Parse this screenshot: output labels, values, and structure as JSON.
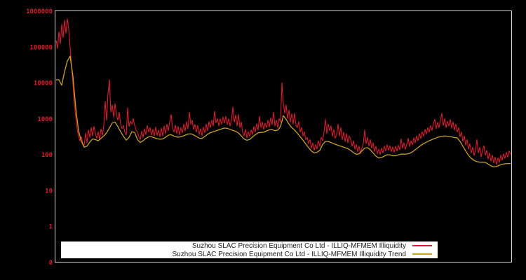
{
  "window": {
    "background": "#000000"
  },
  "plot": {
    "border_color": "#d9d9d9"
  },
  "y_axis": {
    "tick_color": "#dc1c2e",
    "ticks": [
      {
        "value": 1000000,
        "label": "1000000"
      },
      {
        "value": 100000,
        "label": "100000"
      },
      {
        "value": 10000,
        "label": "10000"
      },
      {
        "value": 1000,
        "label": "1000"
      },
      {
        "value": 100,
        "label": "100"
      },
      {
        "value": 10,
        "label": "10"
      },
      {
        "value": 1,
        "label": "1"
      },
      {
        "value": 0.1,
        "label": "0"
      }
    ]
  },
  "legend": {
    "background": "#ffffff",
    "text_color": "#1a1a1a"
  },
  "chart_data": {
    "type": "line",
    "title": "",
    "xlabel": "",
    "ylabel": "",
    "y_scale": "log",
    "ylim": [
      0.1,
      1000000
    ],
    "grid": false,
    "x_axis_labels": "none",
    "legend_position": "bottom-center",
    "series": [
      {
        "name": "Suzhou SLAC Precision Equipment Co Ltd - ILLIQ-MFMEM Illiquidity",
        "color": "#dc1c30",
        "width": 1.1,
        "data_name": "illiquidity-series-line",
        "x0": 80,
        "dx": 2,
        "values": [
          150000,
          90000,
          260000,
          120000,
          420000,
          180000,
          550000,
          240000,
          600000,
          320000,
          90000,
          30000,
          9000,
          2600,
          1100,
          520,
          330,
          240,
          310,
          200,
          180,
          390,
          210,
          480,
          300,
          560,
          330,
          600,
          390,
          280,
          430,
          260,
          520,
          340,
          650,
          3000,
          900,
          5200,
          12000,
          1500,
          2400,
          1100,
          2600,
          1300,
          900,
          1500,
          700,
          520,
          640,
          420,
          350,
          2000,
          600,
          850,
          700,
          1000,
          650,
          480,
          420,
          310,
          260,
          440,
          300,
          520,
          360,
          640,
          420,
          560,
          350,
          500,
          330,
          580,
          340,
          480,
          310,
          540,
          330,
          620,
          380,
          700,
          460,
          800,
          1300,
          560,
          420,
          660,
          380,
          600,
          350,
          560,
          400,
          700,
          450,
          820,
          520,
          1500,
          700,
          900,
          500,
          680,
          420,
          640,
          360,
          520,
          330,
          580,
          400,
          700,
          460,
          820,
          560,
          900,
          620,
          1600,
          760,
          1000,
          620,
          980,
          700,
          1100,
          760,
          1150,
          680,
          1000,
          620,
          900,
          2100,
          800,
          1250,
          620,
          1300,
          560,
          800,
          420,
          330,
          500,
          290,
          430,
          320,
          480,
          360,
          600,
          430,
          720,
          480,
          1150,
          560,
          800,
          500,
          740,
          560,
          900,
          580,
          1050,
          680,
          1500,
          620,
          900,
          560,
          1000,
          800,
          10000,
          2600,
          1400,
          2400,
          1000,
          1700,
          800,
          1350,
          700,
          1400,
          640,
          560,
          820,
          420,
          560,
          330,
          430,
          260,
          300,
          200,
          260,
          150,
          210,
          130,
          190,
          140,
          240,
          170,
          300,
          240,
          420,
          950,
          380,
          700,
          460,
          620,
          320,
          500,
          280,
          360,
          700,
          330,
          560,
          260,
          420,
          230,
          380,
          210,
          330,
          260,
          170,
          240,
          140,
          190,
          120,
          170,
          105,
          150,
          200,
          480,
          200,
          300,
          170,
          260,
          150,
          210,
          120,
          170,
          105,
          140,
          100,
          150,
          110,
          170,
          125,
          185,
          130,
          175,
          120,
          160,
          115,
          170,
          125,
          180,
          135,
          270,
          150,
          210,
          140,
          195,
          280,
          165,
          240,
          185,
          290,
          210,
          330,
          240,
          380,
          280,
          430,
          320,
          500,
          370,
          560,
          420,
          640,
          470,
          720,
          950,
          520,
          780,
          560,
          900,
          1400,
          640,
          1000,
          560,
          850,
          620,
          950,
          540,
          800,
          480,
          700,
          420,
          560,
          310,
          420,
          230,
          330,
          180,
          260,
          140,
          200,
          110,
          160,
          95,
          130,
          260,
          110,
          160,
          85,
          130,
          175,
          95,
          130,
          75,
          110,
          65,
          95,
          58,
          85,
          52,
          80,
          60,
          95,
          70,
          105,
          78,
          115,
          85,
          125,
          100
        ]
      },
      {
        "name": "Suzhou SLAC Precision Equipment Co Ltd - ILLIQ-MFMEM Illiquidity Trend",
        "color": "#c9a227",
        "width": 1.3,
        "data_name": "illiquidity-trend-line",
        "x0": 80,
        "dx": 4,
        "values": [
          12000,
          12000,
          8500,
          20000,
          40000,
          55000,
          15000,
          2000,
          450,
          230,
          160,
          170,
          220,
          270,
          260,
          240,
          280,
          330,
          400,
          550,
          750,
          800,
          600,
          430,
          320,
          250,
          300,
          430,
          410,
          260,
          215,
          240,
          280,
          310,
          310,
          290,
          275,
          265,
          270,
          300,
          345,
          355,
          325,
          305,
          305,
          320,
          345,
          370,
          375,
          350,
          315,
          285,
          280,
          315,
          365,
          405,
          430,
          455,
          485,
          515,
          545,
          535,
          500,
          470,
          440,
          395,
          330,
          270,
          248,
          262,
          305,
          355,
          400,
          410,
          415,
          450,
          485,
          490,
          460,
          475,
          600,
          1200,
          950,
          700,
          560,
          480,
          390,
          310,
          250,
          195,
          155,
          125,
          110,
          115,
          130,
          190,
          230,
          230,
          215,
          200,
          185,
          175,
          165,
          155,
          145,
          130,
          112,
          100,
          105,
          125,
          150,
          155,
          135,
          110,
          90,
          80,
          82,
          90,
          98,
          97,
          92,
          92,
          97,
          102,
          102,
          103,
          107,
          118,
          135,
          155,
          178,
          200,
          220,
          240,
          260,
          280,
          300,
          315,
          325,
          325,
          315,
          308,
          295,
          288,
          230,
          170,
          125,
          95,
          78,
          68,
          63,
          61,
          61,
          60,
          54,
          48,
          45,
          46,
          50,
          53,
          55,
          56,
          56
        ]
      }
    ]
  }
}
